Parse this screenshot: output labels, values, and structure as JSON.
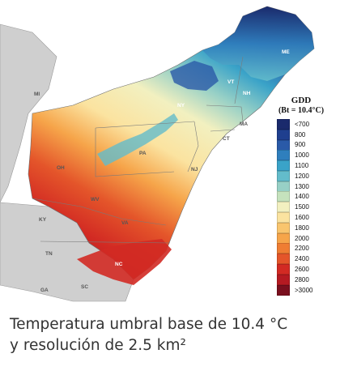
{
  "legend": {
    "title": "GDD",
    "subtitle": "(Bt = 10.4°C)",
    "items": [
      {
        "label": "<700",
        "color": "#1a2a6c"
      },
      {
        "label": "800",
        "color": "#1f3f8f"
      },
      {
        "label": "900",
        "color": "#2a5aa8"
      },
      {
        "label": "1000",
        "color": "#2f7fbd"
      },
      {
        "label": "1100",
        "color": "#3aa3c8"
      },
      {
        "label": "1200",
        "color": "#63bccb"
      },
      {
        "label": "1300",
        "color": "#97d0c6"
      },
      {
        "label": "1400",
        "color": "#c5e2bd"
      },
      {
        "label": "1500",
        "color": "#f2f0c0"
      },
      {
        "label": "1600",
        "color": "#fbe3a0"
      },
      {
        "label": "1800",
        "color": "#f9c56e"
      },
      {
        "label": "2000",
        "color": "#f6a54a"
      },
      {
        "label": "2200",
        "color": "#ef7d33"
      },
      {
        "label": "2400",
        "color": "#e4552a"
      },
      {
        "label": "2600",
        "color": "#d22a23"
      },
      {
        "label": "2800",
        "color": "#b51a22"
      },
      {
        "label": ">3000",
        "color": "#7a0f1e"
      }
    ]
  },
  "map": {
    "state_labels": [
      "ME",
      "VT",
      "NH",
      "MA",
      "CT",
      "NY",
      "MI",
      "OH",
      "PA",
      "NJ",
      "WV",
      "VA",
      "KY",
      "TN",
      "NC",
      "SC",
      "GA"
    ]
  },
  "caption": {
    "line1": "Temperatura umbral base de 10.4 °C",
    "line2": "y resolución de 2.5 km²"
  }
}
